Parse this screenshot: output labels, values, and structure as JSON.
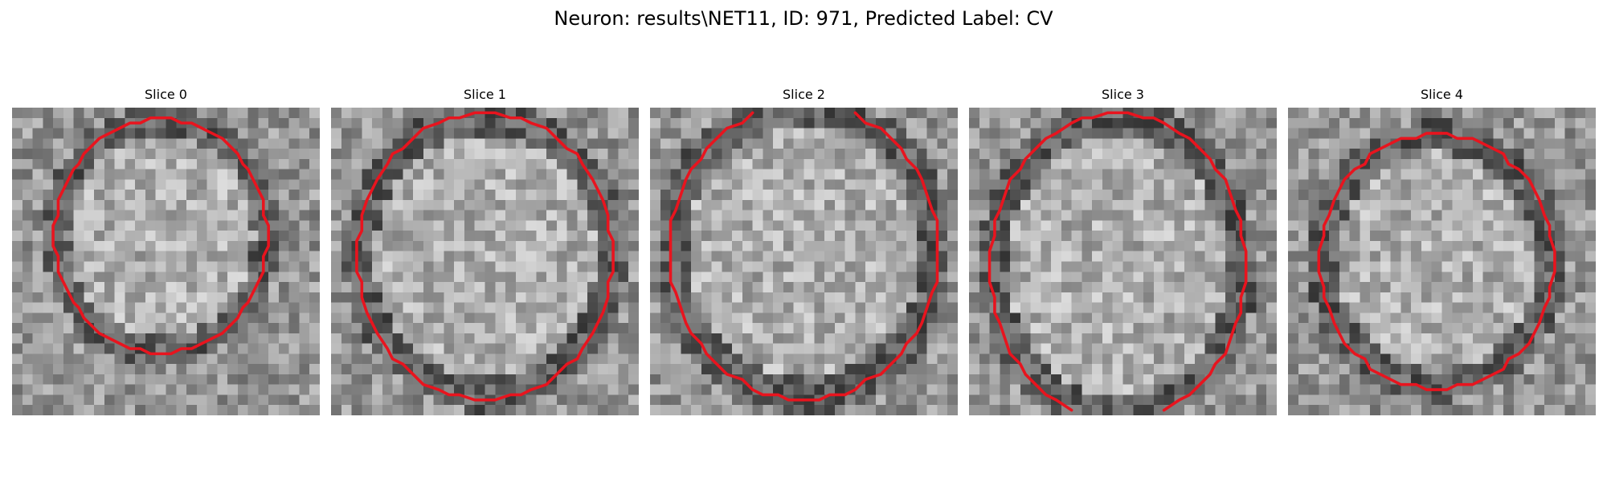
{
  "figure": {
    "suptitle": "Neuron: results\\NET11, ID: 971, Predicted Label: CV",
    "contour_color": "#e8141e"
  },
  "slices": [
    {
      "title": "Slice 0"
    },
    {
      "title": "Slice 1"
    },
    {
      "title": "Slice 2"
    },
    {
      "title": "Slice 3"
    },
    {
      "title": "Slice 4"
    }
  ]
}
